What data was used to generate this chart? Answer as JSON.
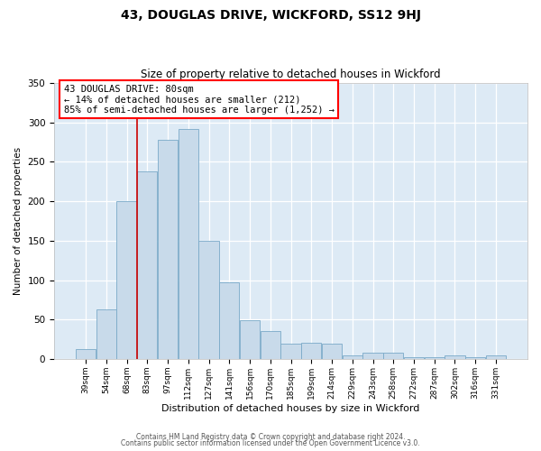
{
  "title": "43, DOUGLAS DRIVE, WICKFORD, SS12 9HJ",
  "subtitle": "Size of property relative to detached houses in Wickford",
  "xlabel": "Distribution of detached houses by size in Wickford",
  "ylabel": "Number of detached properties",
  "categories": [
    "39sqm",
    "54sqm",
    "68sqm",
    "83sqm",
    "97sqm",
    "112sqm",
    "127sqm",
    "141sqm",
    "156sqm",
    "170sqm",
    "185sqm",
    "199sqm",
    "214sqm",
    "229sqm",
    "243sqm",
    "258sqm",
    "272sqm",
    "287sqm",
    "302sqm",
    "316sqm",
    "331sqm"
  ],
  "values": [
    12,
    63,
    200,
    238,
    278,
    292,
    150,
    97,
    49,
    35,
    19,
    20,
    19,
    5,
    8,
    8,
    2,
    2,
    5,
    2,
    5
  ],
  "bar_color": "#c8daea",
  "bar_edgecolor": "#7aaac8",
  "ylim_max": 350,
  "yticks": [
    0,
    50,
    100,
    150,
    200,
    250,
    300,
    350
  ],
  "annotation_line1": "43 DOUGLAS DRIVE: 80sqm",
  "annotation_line2": "← 14% of detached houses are smaller (212)",
  "annotation_line3": "85% of semi-detached houses are larger (1,252) →",
  "footer1": "Contains HM Land Registry data © Crown copyright and database right 2024.",
  "footer2": "Contains public sector information licensed under the Open Government Licence v3.0.",
  "bg_color": "#ddeaf5",
  "red_line_sqm": 80,
  "sqm_68_idx": 2,
  "sqm_83_idx": 3
}
